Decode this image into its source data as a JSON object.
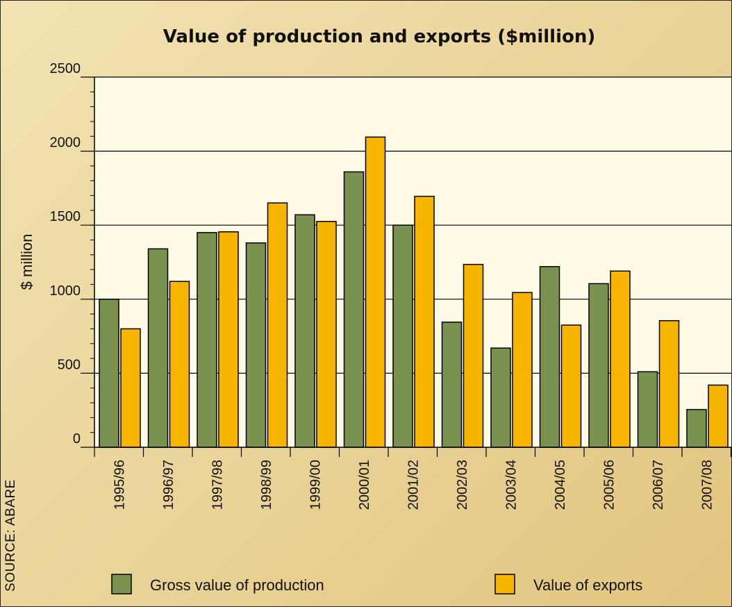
{
  "chart_data": {
    "type": "bar",
    "title": "Value of production and exports ($million)",
    "ylabel": "$ million",
    "xlabel": "",
    "ylim": [
      0,
      2500
    ],
    "yticks": [
      0,
      500,
      1000,
      1500,
      2000,
      2500
    ],
    "grid": "horizontal",
    "legend": "bottom",
    "source": "SOURCE: ABARE",
    "categories": [
      "1995/96",
      "1996/97",
      "1997/98",
      "1998/99",
      "1999/00",
      "2000/01",
      "2001/02",
      "2002/03",
      "2003/04",
      "2004/05",
      "2005/06",
      "2006/07",
      "2007/08"
    ],
    "series": [
      {
        "name": "Gross value of production",
        "color": "#7b9150",
        "values": [
          1000,
          1340,
          1450,
          1380,
          1570,
          1860,
          1500,
          845,
          670,
          1220,
          1105,
          510,
          255
        ]
      },
      {
        "name": "Value of exports",
        "color": "#f7b500",
        "values": [
          800,
          1120,
          1455,
          1650,
          1525,
          2095,
          1695,
          1235,
          1045,
          825,
          1190,
          855,
          420
        ]
      }
    ]
  }
}
